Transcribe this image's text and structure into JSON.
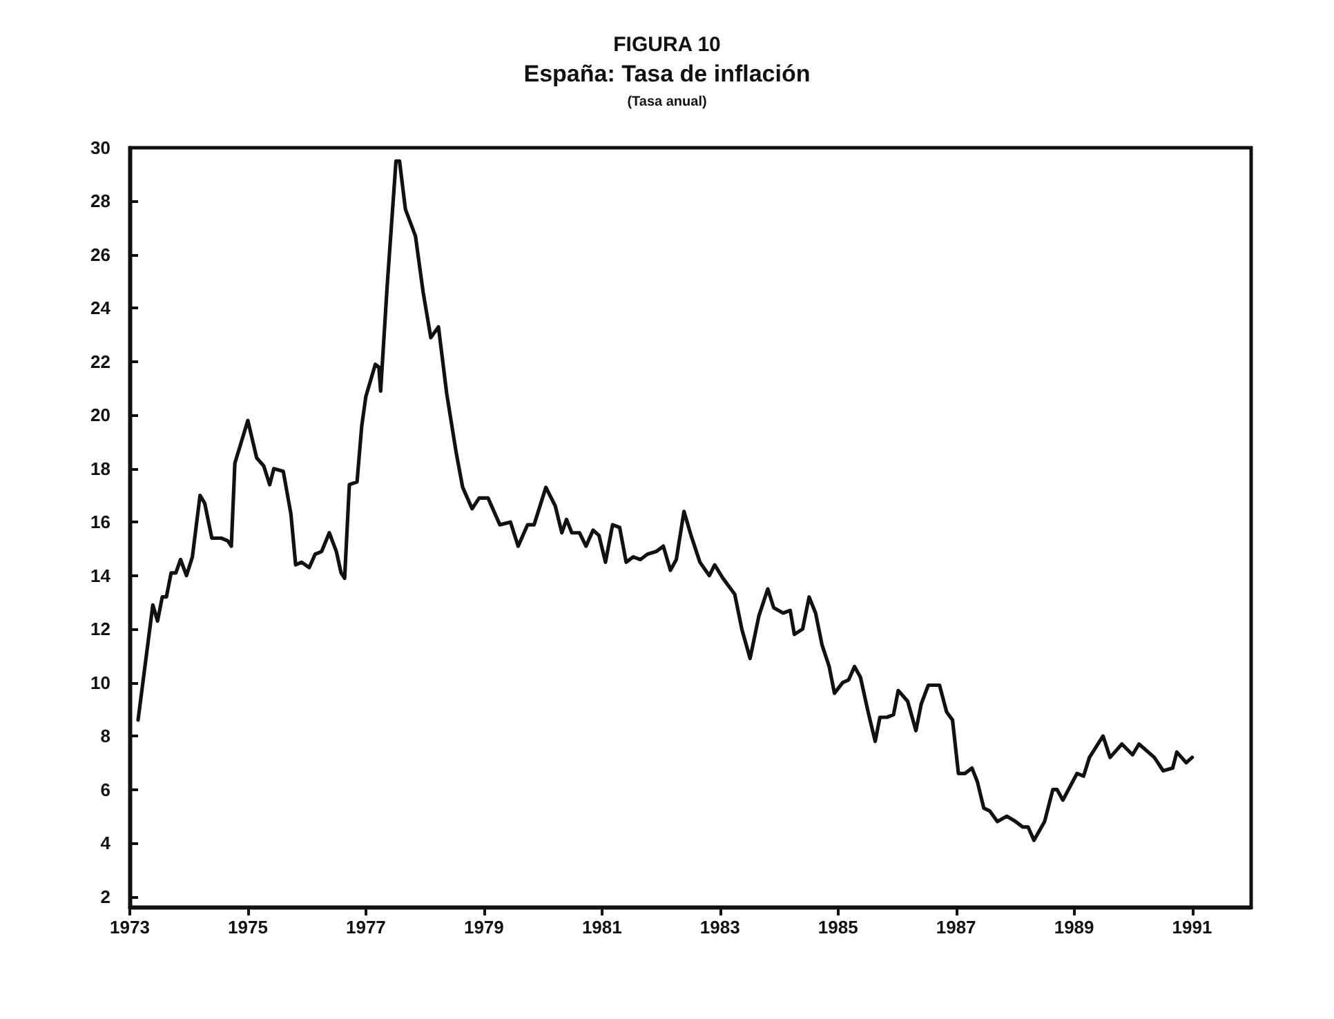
{
  "chart_data": {
    "type": "line",
    "title": "FIGURA 10",
    "subtitle": "España: Tasa de inflación",
    "annotations": [
      "(Tasa anual)"
    ],
    "x": [
      1973.14,
      1973.39,
      1973.47,
      1973.55,
      1973.62,
      1973.7,
      1973.78,
      1973.86,
      1973.96,
      1974.06,
      1974.19,
      1974.27,
      1974.39,
      1974.55,
      1974.66,
      1974.72,
      1974.78,
      1975.0,
      1975.15,
      1975.27,
      1975.37,
      1975.44,
      1975.6,
      1975.73,
      1975.81,
      1975.91,
      1976.04,
      1976.14,
      1976.25,
      1976.38,
      1976.5,
      1976.58,
      1976.64,
      1976.72,
      1976.85,
      1976.93,
      1977.0,
      1977.16,
      1977.22,
      1977.25,
      1977.36,
      1977.51,
      1977.57,
      1977.67,
      1977.84,
      1977.97,
      1978.1,
      1978.23,
      1978.37,
      1978.53,
      1978.64,
      1978.8,
      1978.92,
      1979.07,
      1979.19,
      1979.27,
      1979.45,
      1979.58,
      1979.74,
      1979.85,
      1980.05,
      1980.21,
      1980.32,
      1980.4,
      1980.49,
      1980.62,
      1980.73,
      1980.85,
      1980.95,
      1981.06,
      1981.18,
      1981.3,
      1981.41,
      1981.53,
      1981.65,
      1981.77,
      1981.92,
      1982.04,
      1982.16,
      1982.26,
      1982.39,
      1982.51,
      1982.66,
      1982.82,
      1982.91,
      1983.05,
      1983.25,
      1983.37,
      1983.51,
      1983.66,
      1983.81,
      1983.91,
      1984.07,
      1984.19,
      1984.26,
      1984.4,
      1984.51,
      1984.62,
      1984.73,
      1984.85,
      1984.94,
      1985.08,
      1985.18,
      1985.28,
      1985.38,
      1985.51,
      1985.63,
      1985.71,
      1985.83,
      1985.94,
      1986.02,
      1986.18,
      1986.32,
      1986.41,
      1986.53,
      1986.72,
      1986.84,
      1986.94,
      1987.04,
      1987.15,
      1987.27,
      1987.36,
      1987.47,
      1987.57,
      1987.7,
      1987.86,
      1988.01,
      1988.13,
      1988.22,
      1988.32,
      1988.5,
      1988.64,
      1988.71,
      1988.81,
      1989.05,
      1989.16,
      1989.26,
      1989.49,
      1989.61,
      1989.81,
      1989.99,
      1990.1,
      1990.36,
      1990.51,
      1990.67,
      1990.74,
      1990.9,
      1991.0
    ],
    "series": [
      {
        "color": "#111111",
        "values": [
          8.6,
          12.9,
          12.3,
          13.2,
          13.2,
          14.1,
          14.1,
          14.6,
          14.0,
          14.7,
          17.0,
          16.7,
          15.4,
          15.4,
          15.3,
          15.1,
          18.2,
          19.8,
          18.4,
          18.1,
          17.4,
          18.0,
          17.9,
          16.3,
          14.4,
          14.5,
          14.3,
          14.8,
          14.9,
          15.6,
          14.9,
          14.1,
          13.9,
          17.4,
          17.5,
          19.6,
          20.7,
          21.9,
          21.8,
          20.9,
          24.8,
          29.5,
          29.5,
          27.7,
          26.7,
          24.6,
          22.9,
          23.3,
          20.8,
          18.6,
          17.3,
          16.5,
          16.9,
          16.9,
          16.3,
          15.9,
          16.0,
          15.1,
          15.9,
          15.9,
          17.3,
          16.6,
          15.6,
          16.1,
          15.6,
          15.6,
          15.1,
          15.7,
          15.5,
          14.5,
          15.9,
          15.8,
          14.5,
          14.7,
          14.6,
          14.8,
          14.9,
          15.1,
          14.2,
          14.6,
          16.4,
          15.5,
          14.5,
          14.0,
          14.4,
          13.9,
          13.3,
          12.0,
          10.9,
          12.5,
          13.5,
          12.8,
          12.6,
          12.7,
          11.8,
          12.0,
          13.2,
          12.6,
          11.4,
          10.6,
          9.6,
          10.0,
          10.1,
          10.6,
          10.2,
          8.9,
          7.8,
          8.7,
          8.7,
          8.8,
          9.7,
          9.3,
          8.2,
          9.2,
          9.9,
          9.9,
          8.9,
          8.6,
          6.6,
          6.6,
          6.8,
          6.3,
          5.3,
          5.2,
          4.8,
          5.0,
          4.8,
          4.6,
          4.6,
          4.1,
          4.8,
          6.0,
          6.0,
          5.6,
          6.6,
          6.5,
          7.2,
          8.0,
          7.2,
          7.7,
          7.3,
          7.7,
          7.2,
          6.7,
          6.8,
          7.4,
          7.0,
          7.2
        ]
      }
    ],
    "xlim": [
      1973,
      1992
    ],
    "xticks": [
      1973,
      1975,
      1977,
      1979,
      1981,
      1983,
      1985,
      1987,
      1989,
      1991
    ],
    "ylim": [
      1.6,
      30
    ],
    "yticks": [
      2,
      4,
      6,
      8,
      10,
      12,
      14,
      16,
      18,
      20,
      22,
      24,
      26,
      28,
      30
    ],
    "grid": false,
    "marker": "none",
    "line_style": "solid"
  }
}
